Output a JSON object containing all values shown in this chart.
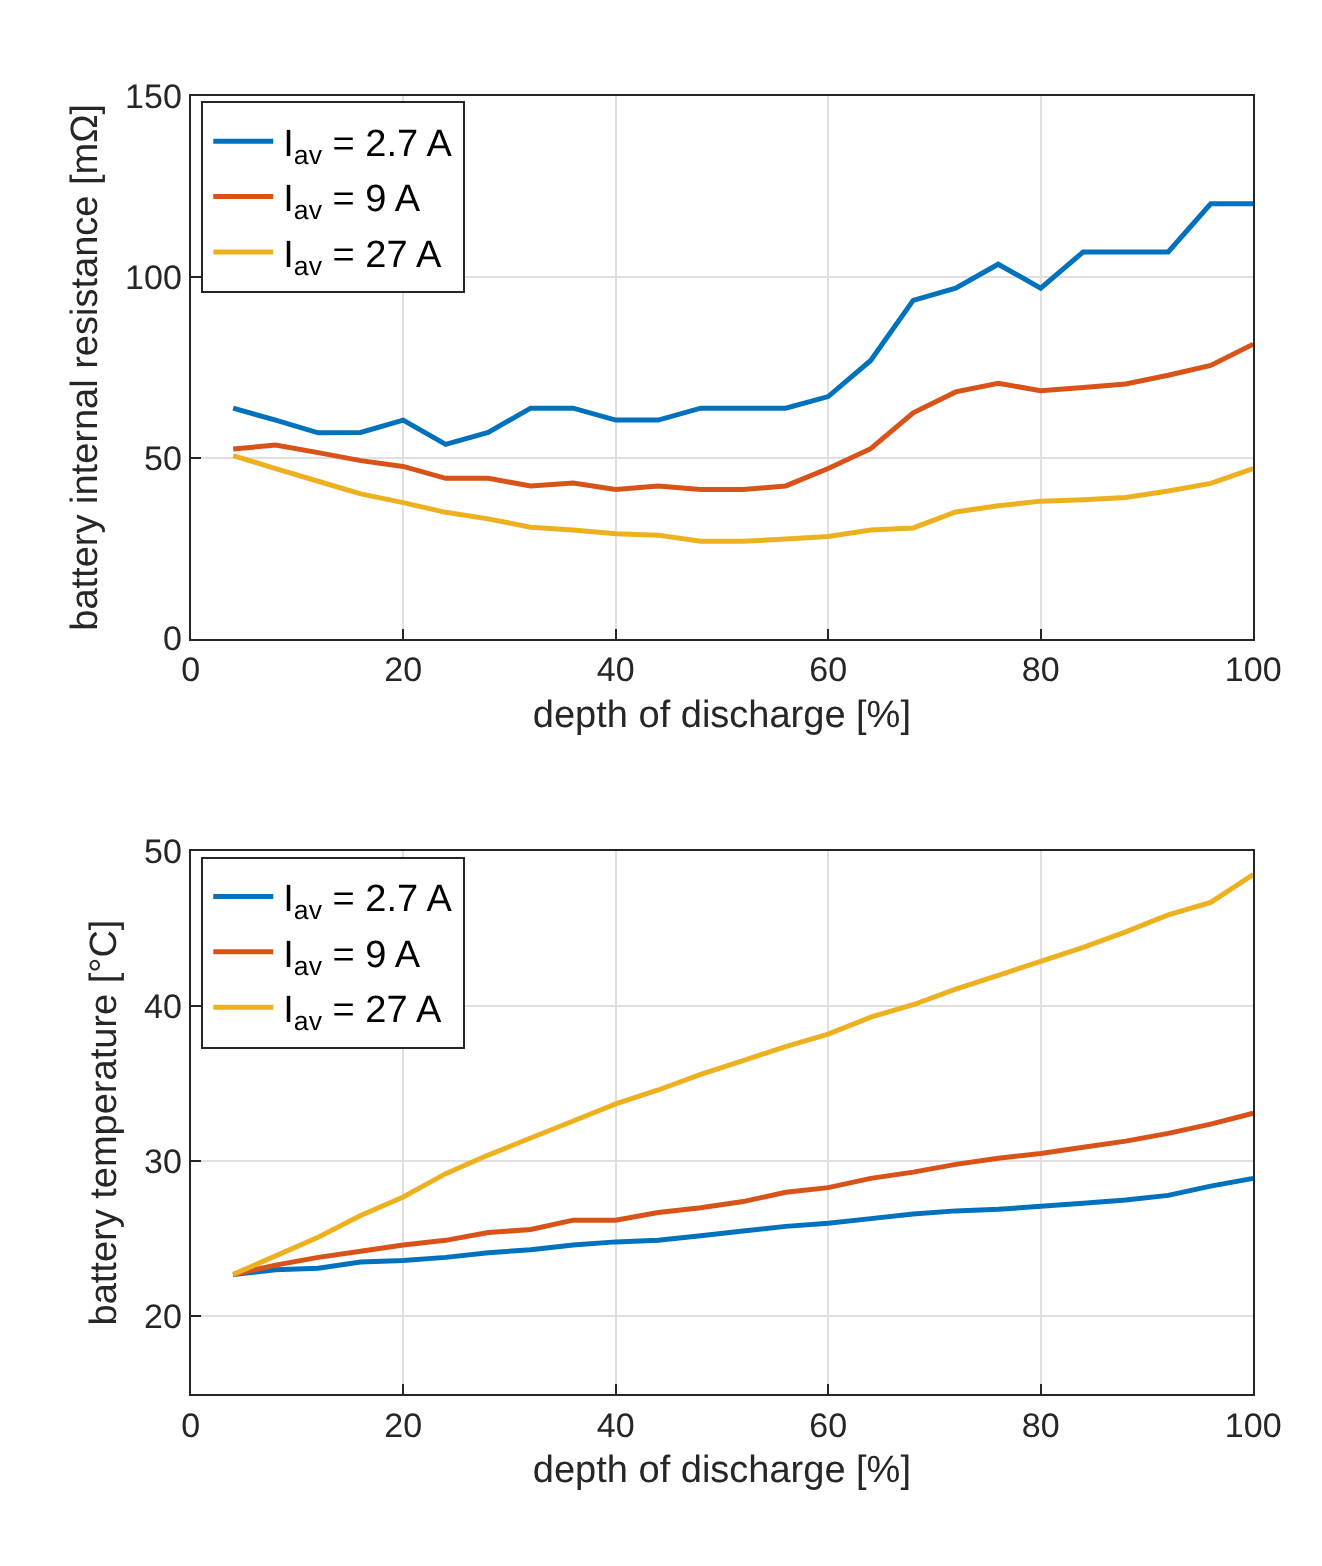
{
  "chart_data": [
    {
      "type": "line",
      "xlabel": "depth of discharge [%]",
      "ylabel": "battery internal resistance [mΩ]",
      "x": [
        4,
        8,
        12,
        16,
        20,
        24,
        28,
        32,
        36,
        40,
        44,
        48,
        52,
        56,
        60,
        64,
        68,
        72,
        76,
        80,
        84,
        88,
        92,
        96,
        100
      ],
      "series": [
        {
          "name": "I$_{av}$ = 2.7 A",
          "color": "#0072bd",
          "values": [
            63.7,
            60.4,
            56.9,
            57,
            60.4,
            53.7,
            57,
            63.7,
            63.7,
            60.4,
            60.4,
            63.7,
            63.7,
            63.7,
            66.9,
            76.9,
            93.5,
            96.9,
            103.5,
            96.9,
            106.9,
            106.9,
            106.9,
            120.2,
            120.2
          ]
        },
        {
          "name": "I$_{av}$ = 9 A",
          "color": "#d95319",
          "values": [
            52.4,
            53.5,
            51.4,
            49.2,
            47.6,
            44.3,
            44.3,
            42.2,
            43,
            41.2,
            42.2,
            41.2,
            41.2,
            42.2,
            47,
            52.5,
            62.4,
            68.2,
            70.6,
            68.5,
            69.4,
            70.4,
            72.8,
            75.5,
            81.4
          ]
        },
        {
          "name": "I$_{av}$ = 27 A",
          "color": "#edb120",
          "values": [
            50.6,
            47,
            43.5,
            40,
            37.6,
            34.9,
            33.1,
            30.8,
            30,
            29,
            28.6,
            26.9,
            26.9,
            27.5,
            28.2,
            30,
            30.6,
            35,
            36.7,
            38,
            38.4,
            39,
            40.8,
            42.9,
            47
          ]
        }
      ],
      "xlim": [
        0,
        100
      ],
      "xticks": [
        0,
        20,
        40,
        60,
        80,
        100
      ],
      "ylim": [
        0,
        150
      ],
      "yticks": [
        0,
        50,
        100,
        150
      ],
      "grid": true,
      "legend": "top left",
      "marker": "none",
      "line_style": "solid"
    },
    {
      "type": "line",
      "xlabel": "depth of discharge [%]",
      "ylabel": "battery temperature [°C]",
      "x": [
        4,
        8,
        12,
        16,
        20,
        24,
        28,
        32,
        36,
        40,
        44,
        48,
        52,
        56,
        60,
        64,
        68,
        72,
        76,
        80,
        84,
        88,
        92,
        96,
        100
      ],
      "series": [
        {
          "name": "I$_{av}$ = 2.7 A",
          "color": "#0072bd",
          "values": [
            22.7,
            23,
            23.1,
            23.5,
            23.6,
            23.8,
            24.1,
            24.3,
            24.6,
            24.8,
            24.9,
            25.2,
            25.5,
            25.8,
            26,
            26.3,
            26.6,
            26.8,
            26.9,
            27.1,
            27.3,
            27.5,
            27.8,
            28.4,
            28.9
          ]
        },
        {
          "name": "I$_{av}$ = 9 A",
          "color": "#d95319",
          "values": [
            22.7,
            23.3,
            23.8,
            24.2,
            24.6,
            24.9,
            25.4,
            25.6,
            26.2,
            26.2,
            26.7,
            27,
            27.4,
            28,
            28.3,
            28.9,
            29.3,
            29.8,
            30.2,
            30.5,
            30.9,
            31.3,
            31.8,
            32.4,
            33.1
          ]
        },
        {
          "name": "I$_{av}$ = 27 A",
          "color": "#edb120",
          "values": [
            22.7,
            23.9,
            25.1,
            26.5,
            27.7,
            29.2,
            30.4,
            31.5,
            32.6,
            33.7,
            34.6,
            35.6,
            36.5,
            37.4,
            38.2,
            39.3,
            40.1,
            41.1,
            42,
            42.9,
            43.8,
            44.8,
            45.9,
            46.7,
            48.5
          ]
        }
      ],
      "xlim": [
        0,
        100
      ],
      "xticks": [
        0,
        20,
        40,
        60,
        80,
        100
      ],
      "ylim": [
        15,
        50
      ],
      "yticks": [
        20,
        30,
        40,
        50
      ],
      "grid": true,
      "legend": "top left",
      "marker": "none",
      "line_style": "solid"
    }
  ]
}
